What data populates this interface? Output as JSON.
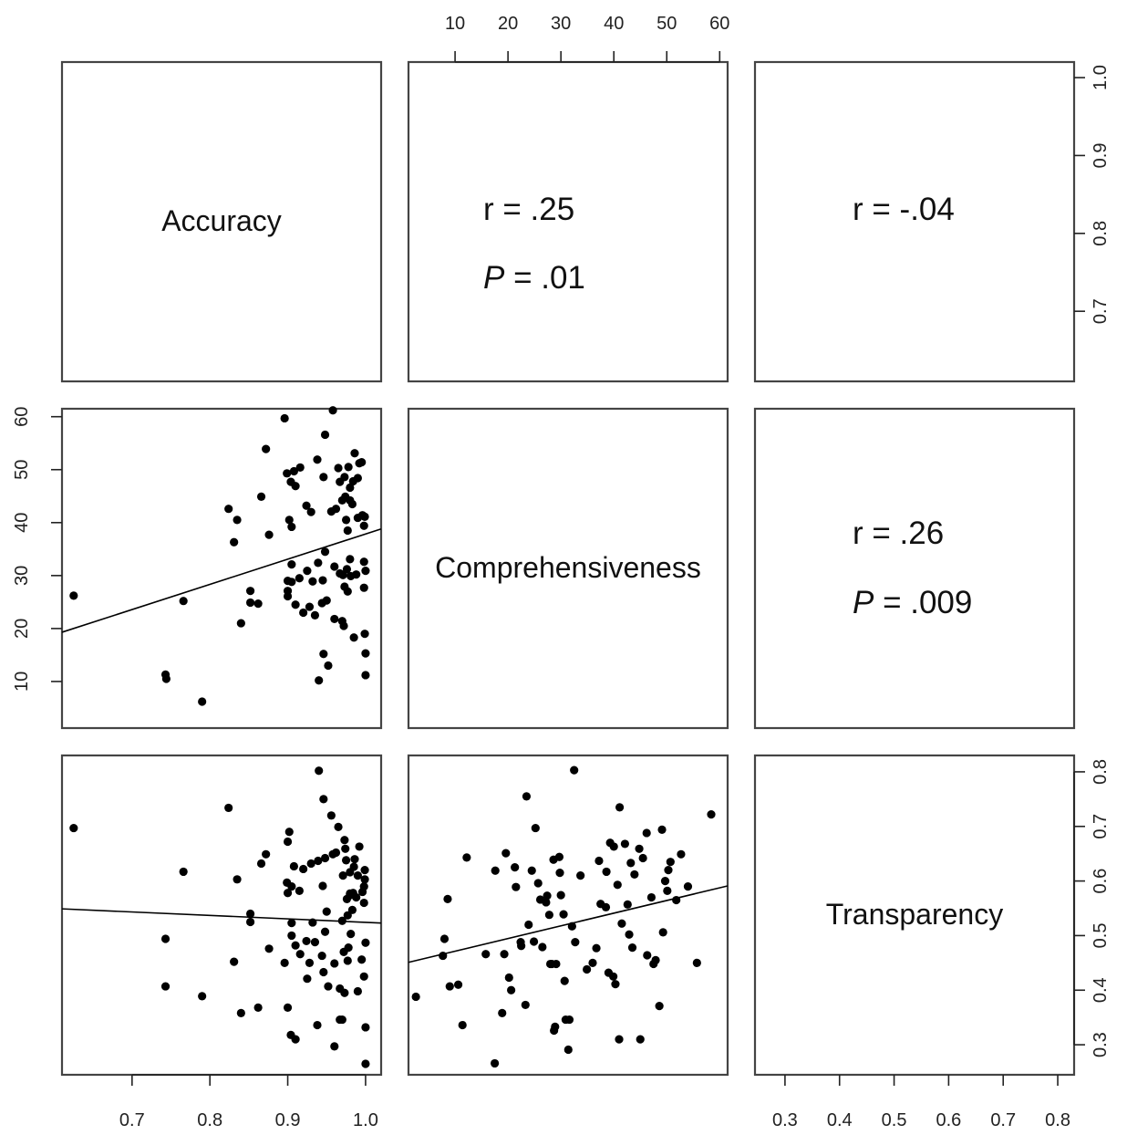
{
  "chart_data": {
    "type": "scatter",
    "variables": [
      "Accuracy",
      "Comprehensiveness",
      "Transparency"
    ],
    "panels": [
      {
        "row": 0,
        "col": 0,
        "kind": "label",
        "text": "Accuracy"
      },
      {
        "row": 0,
        "col": 1,
        "kind": "stat",
        "r": "r = .25",
        "p_label": "P",
        "p_rest": " = .01"
      },
      {
        "row": 0,
        "col": 2,
        "kind": "stat",
        "r": "r = -.04",
        "p_label": "",
        "p_rest": ""
      },
      {
        "row": 1,
        "col": 1,
        "kind": "label",
        "text": "Comprehensiveness"
      },
      {
        "row": 1,
        "col": 2,
        "kind": "stat",
        "r": "r = .26",
        "p_label": "P",
        "p_rest": " = .009"
      },
      {
        "row": 2,
        "col": 2,
        "kind": "label",
        "text": "Transparency"
      },
      {
        "row": 1,
        "col": 0,
        "kind": "scatter",
        "xvar": "Accuracy",
        "yvar": "Comprehensiveness"
      },
      {
        "row": 2,
        "col": 0,
        "kind": "scatter",
        "xvar": "Accuracy",
        "yvar": "Transparency"
      },
      {
        "row": 2,
        "col": 1,
        "kind": "scatter",
        "xvar": "Comprehensiveness",
        "yvar": "Transparency"
      }
    ],
    "axes": {
      "Accuracy": {
        "lim": [
          0.61,
          1.02
        ],
        "ticks": [
          0.7,
          0.8,
          0.9,
          1.0
        ],
        "tick_labels": [
          "0.7",
          "0.8",
          "0.9",
          "1.0"
        ]
      },
      "Comprehensiveness": {
        "lim": [
          1.2,
          61.5
        ],
        "ticks": [
          10,
          20,
          30,
          40,
          50,
          60
        ],
        "tick_labels": [
          "10",
          "20",
          "30",
          "40",
          "50",
          "60"
        ]
      },
      "Transparency": {
        "lim": [
          0.245,
          0.83
        ],
        "ticks": [
          0.3,
          0.4,
          0.5,
          0.6,
          0.7,
          0.8
        ],
        "tick_labels": [
          "0.3",
          "0.4",
          "0.5",
          "0.6",
          "0.7",
          "0.8"
        ]
      }
    },
    "fit_lines": {
      "acc_comp": [
        [
          0.61,
          19.3
        ],
        [
          1.02,
          38.8
        ]
      ],
      "acc_trans": [
        [
          0.61,
          0.549
        ],
        [
          1.02,
          0.523
        ]
      ],
      "comp_trans": [
        [
          1.2,
          0.451
        ],
        [
          61.5,
          0.591
        ]
      ]
    },
    "accuracy_vs_comprehensiveness": [
      [
        0.625,
        26.2
      ],
      [
        0.743,
        11.3
      ],
      [
        0.744,
        10.5
      ],
      [
        0.766,
        25.2
      ],
      [
        0.79,
        6.2
      ],
      [
        0.824,
        42.6
      ],
      [
        0.831,
        36.3
      ],
      [
        0.835,
        40.5
      ],
      [
        0.84,
        21.0
      ],
      [
        0.852,
        27.1
      ],
      [
        0.852,
        24.9
      ],
      [
        0.862,
        24.7
      ],
      [
        0.866,
        44.9
      ],
      [
        0.872,
        53.9
      ],
      [
        0.876,
        37.7
      ],
      [
        0.896,
        59.7
      ],
      [
        0.899,
        49.3
      ],
      [
        0.9,
        29.0
      ],
      [
        0.9,
        27.1
      ],
      [
        0.9,
        26.1
      ],
      [
        0.902,
        40.5
      ],
      [
        0.904,
        47.7
      ],
      [
        0.905,
        39.2
      ],
      [
        0.905,
        32.1
      ],
      [
        0.905,
        28.8
      ],
      [
        0.908,
        49.7
      ],
      [
        0.91,
        46.9
      ],
      [
        0.91,
        24.5
      ],
      [
        0.915,
        29.5
      ],
      [
        0.916,
        50.4
      ],
      [
        0.92,
        23.0
      ],
      [
        0.924,
        43.2
      ],
      [
        0.925,
        30.9
      ],
      [
        0.928,
        24.1
      ],
      [
        0.93,
        42.0
      ],
      [
        0.932,
        28.9
      ],
      [
        0.935,
        22.5
      ],
      [
        0.938,
        51.9
      ],
      [
        0.939,
        32.4
      ],
      [
        0.94,
        10.2
      ],
      [
        0.944,
        24.8
      ],
      [
        0.945,
        29.1
      ],
      [
        0.946,
        48.6
      ],
      [
        0.946,
        15.2
      ],
      [
        0.948,
        56.6
      ],
      [
        0.948,
        34.5
      ],
      [
        0.95,
        25.3
      ],
      [
        0.952,
        13.0
      ],
      [
        0.956,
        42.1
      ],
      [
        0.958,
        61.2
      ],
      [
        0.96,
        31.7
      ],
      [
        0.96,
        21.8
      ],
      [
        0.962,
        42.6
      ],
      [
        0.965,
        50.3
      ],
      [
        0.967,
        47.7
      ],
      [
        0.967,
        30.4
      ],
      [
        0.97,
        44.2
      ],
      [
        0.97,
        21.4
      ],
      [
        0.971,
        30.1
      ],
      [
        0.972,
        20.5
      ],
      [
        0.973,
        48.6
      ],
      [
        0.973,
        27.9
      ],
      [
        0.974,
        44.9
      ],
      [
        0.975,
        40.5
      ],
      [
        0.976,
        31.2
      ],
      [
        0.977,
        38.5
      ],
      [
        0.977,
        27.0
      ],
      [
        0.978,
        50.5
      ],
      [
        0.98,
        33.1
      ],
      [
        0.98,
        46.6
      ],
      [
        0.98,
        44.2
      ],
      [
        0.981,
        29.9
      ],
      [
        0.983,
        43.5
      ],
      [
        0.984,
        47.8
      ],
      [
        0.985,
        18.3
      ],
      [
        0.986,
        53.1
      ],
      [
        0.988,
        30.2
      ],
      [
        0.99,
        40.9
      ],
      [
        0.99,
        48.4
      ],
      [
        0.992,
        51.2
      ],
      [
        0.995,
        51.4
      ],
      [
        0.996,
        41.4
      ],
      [
        0.998,
        39.4
      ],
      [
        0.998,
        32.6
      ],
      [
        0.998,
        27.7
      ],
      [
        0.999,
        19.0
      ],
      [
        1.0,
        15.3
      ],
      [
        1.0,
        11.2
      ],
      [
        1.0,
        30.9
      ],
      [
        0.999,
        41.1
      ]
    ],
    "accuracy_vs_transparency": [
      [
        0.625,
        0.697
      ],
      [
        0.743,
        0.494
      ],
      [
        0.743,
        0.407
      ],
      [
        0.766,
        0.617
      ],
      [
        0.79,
        0.389
      ],
      [
        0.824,
        0.734
      ],
      [
        0.831,
        0.452
      ],
      [
        0.835,
        0.603
      ],
      [
        0.84,
        0.358
      ],
      [
        0.852,
        0.54
      ],
      [
        0.852,
        0.525
      ],
      [
        0.862,
        0.368
      ],
      [
        0.866,
        0.632
      ],
      [
        0.872,
        0.649
      ],
      [
        0.876,
        0.476
      ],
      [
        0.896,
        0.45
      ],
      [
        0.899,
        0.597
      ],
      [
        0.9,
        0.368
      ],
      [
        0.9,
        0.672
      ],
      [
        0.9,
        0.578
      ],
      [
        0.902,
        0.69
      ],
      [
        0.904,
        0.318
      ],
      [
        0.905,
        0.523
      ],
      [
        0.905,
        0.5
      ],
      [
        0.905,
        0.59
      ],
      [
        0.908,
        0.627
      ],
      [
        0.91,
        0.31
      ],
      [
        0.91,
        0.482
      ],
      [
        0.915,
        0.582
      ],
      [
        0.916,
        0.466
      ],
      [
        0.92,
        0.622
      ],
      [
        0.924,
        0.49
      ],
      [
        0.925,
        0.421
      ],
      [
        0.928,
        0.45
      ],
      [
        0.93,
        0.632
      ],
      [
        0.932,
        0.524
      ],
      [
        0.935,
        0.488
      ],
      [
        0.938,
        0.336
      ],
      [
        0.939,
        0.637
      ],
      [
        0.94,
        0.802
      ],
      [
        0.944,
        0.463
      ],
      [
        0.945,
        0.591
      ],
      [
        0.946,
        0.75
      ],
      [
        0.946,
        0.433
      ],
      [
        0.948,
        0.642
      ],
      [
        0.948,
        0.507
      ],
      [
        0.95,
        0.544
      ],
      [
        0.952,
        0.407
      ],
      [
        0.956,
        0.72
      ],
      [
        0.958,
        0.649
      ],
      [
        0.96,
        0.297
      ],
      [
        0.96,
        0.449
      ],
      [
        0.962,
        0.652
      ],
      [
        0.965,
        0.699
      ],
      [
        0.967,
        0.346
      ],
      [
        0.967,
        0.403
      ],
      [
        0.97,
        0.527
      ],
      [
        0.97,
        0.346
      ],
      [
        0.971,
        0.61
      ],
      [
        0.972,
        0.47
      ],
      [
        0.973,
        0.675
      ],
      [
        0.973,
        0.395
      ],
      [
        0.974,
        0.659
      ],
      [
        0.975,
        0.638
      ],
      [
        0.976,
        0.567
      ],
      [
        0.977,
        0.537
      ],
      [
        0.977,
        0.454
      ],
      [
        0.978,
        0.478
      ],
      [
        0.98,
        0.577
      ],
      [
        0.98,
        0.616
      ],
      [
        0.98,
        0.574
      ],
      [
        0.981,
        0.503
      ],
      [
        0.983,
        0.547
      ],
      [
        0.984,
        0.578
      ],
      [
        0.985,
        0.626
      ],
      [
        0.986,
        0.64
      ],
      [
        0.988,
        0.57
      ],
      [
        0.99,
        0.398
      ],
      [
        0.99,
        0.61
      ],
      [
        0.992,
        0.663
      ],
      [
        0.995,
        0.456
      ],
      [
        0.996,
        0.58
      ],
      [
        0.998,
        0.56
      ],
      [
        0.998,
        0.59
      ],
      [
        0.998,
        0.425
      ],
      [
        0.999,
        0.62
      ],
      [
        1.0,
        0.487
      ],
      [
        1.0,
        0.332
      ],
      [
        1.0,
        0.265
      ],
      [
        0.999,
        0.603
      ]
    ],
    "comprehensiveness_vs_transparency": [
      [
        2.6,
        0.388
      ],
      [
        7.7,
        0.463
      ],
      [
        8.0,
        0.494
      ],
      [
        8.6,
        0.567
      ],
      [
        9.0,
        0.407
      ],
      [
        10.6,
        0.41
      ],
      [
        11.4,
        0.336
      ],
      [
        12.2,
        0.643
      ],
      [
        15.8,
        0.466
      ],
      [
        17.5,
        0.266
      ],
      [
        17.6,
        0.619
      ],
      [
        18.9,
        0.358
      ],
      [
        19.3,
        0.466
      ],
      [
        19.6,
        0.651
      ],
      [
        20.2,
        0.423
      ],
      [
        20.6,
        0.4
      ],
      [
        21.3,
        0.625
      ],
      [
        21.5,
        0.589
      ],
      [
        22.4,
        0.488
      ],
      [
        22.5,
        0.481
      ],
      [
        23.3,
        0.373
      ],
      [
        23.5,
        0.755
      ],
      [
        23.9,
        0.52
      ],
      [
        24.5,
        0.619
      ],
      [
        24.9,
        0.489
      ],
      [
        25.2,
        0.697
      ],
      [
        25.7,
        0.596
      ],
      [
        26.1,
        0.566
      ],
      [
        26.5,
        0.479
      ],
      [
        27.2,
        0.561
      ],
      [
        27.4,
        0.573
      ],
      [
        27.8,
        0.538
      ],
      [
        28.0,
        0.448
      ],
      [
        28.3,
        0.448
      ],
      [
        28.6,
        0.639
      ],
      [
        28.7,
        0.326
      ],
      [
        28.9,
        0.333
      ],
      [
        29.1,
        0.448
      ],
      [
        29.7,
        0.644
      ],
      [
        29.8,
        0.615
      ],
      [
        30.0,
        0.574
      ],
      [
        30.5,
        0.539
      ],
      [
        30.7,
        0.417
      ],
      [
        30.9,
        0.346
      ],
      [
        31.4,
        0.291
      ],
      [
        31.6,
        0.346
      ],
      [
        32.1,
        0.517
      ],
      [
        32.5,
        0.803
      ],
      [
        32.7,
        0.488
      ],
      [
        33.7,
        0.61
      ],
      [
        34.9,
        0.438
      ],
      [
        36.0,
        0.45
      ],
      [
        36.7,
        0.477
      ],
      [
        37.2,
        0.637
      ],
      [
        37.5,
        0.558
      ],
      [
        38.5,
        0.552
      ],
      [
        38.6,
        0.617
      ],
      [
        39.0,
        0.432
      ],
      [
        39.3,
        0.67
      ],
      [
        39.9,
        0.425
      ],
      [
        40.0,
        0.663
      ],
      [
        40.3,
        0.411
      ],
      [
        40.7,
        0.593
      ],
      [
        41.0,
        0.31
      ],
      [
        41.1,
        0.735
      ],
      [
        41.5,
        0.522
      ],
      [
        42.1,
        0.668
      ],
      [
        42.6,
        0.557
      ],
      [
        42.9,
        0.502
      ],
      [
        43.2,
        0.633
      ],
      [
        43.5,
        0.478
      ],
      [
        43.9,
        0.612
      ],
      [
        44.8,
        0.659
      ],
      [
        45.0,
        0.31
      ],
      [
        45.5,
        0.642
      ],
      [
        46.2,
        0.688
      ],
      [
        46.3,
        0.464
      ],
      [
        47.1,
        0.57
      ],
      [
        47.5,
        0.448
      ],
      [
        47.9,
        0.455
      ],
      [
        48.6,
        0.371
      ],
      [
        49.1,
        0.694
      ],
      [
        49.3,
        0.506
      ],
      [
        49.7,
        0.6
      ],
      [
        50.1,
        0.582
      ],
      [
        50.3,
        0.62
      ],
      [
        50.7,
        0.635
      ],
      [
        51.8,
        0.565
      ],
      [
        52.7,
        0.649
      ],
      [
        54.0,
        0.59
      ],
      [
        55.7,
        0.45
      ],
      [
        58.4,
        0.722
      ]
    ]
  }
}
